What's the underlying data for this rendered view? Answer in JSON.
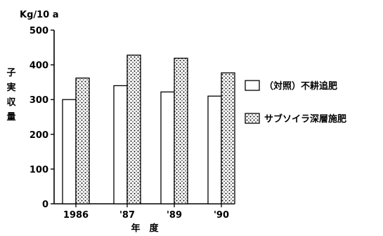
{
  "chart_data": {
    "type": "bar",
    "categories": [
      "1986",
      "'87",
      "'89",
      "'90"
    ],
    "series": [
      {
        "name": "（対照）不耕追肥",
        "values": [
          300,
          340,
          322,
          310
        ]
      },
      {
        "name": "サブソイラ深層施肥",
        "values": [
          362,
          428,
          419,
          377
        ]
      }
    ],
    "xlabel": "年　度",
    "ylabel": "子実収量",
    "y_unit": "Kg/10 a",
    "ylim": [
      0,
      500
    ],
    "yticks": [
      0,
      100,
      200,
      300,
      400,
      500
    ],
    "grid": false,
    "legend_position": "right"
  },
  "colors": {
    "series_1_fill": "#ffffff",
    "series_2_pattern": "dotted",
    "stroke": "#000000"
  }
}
